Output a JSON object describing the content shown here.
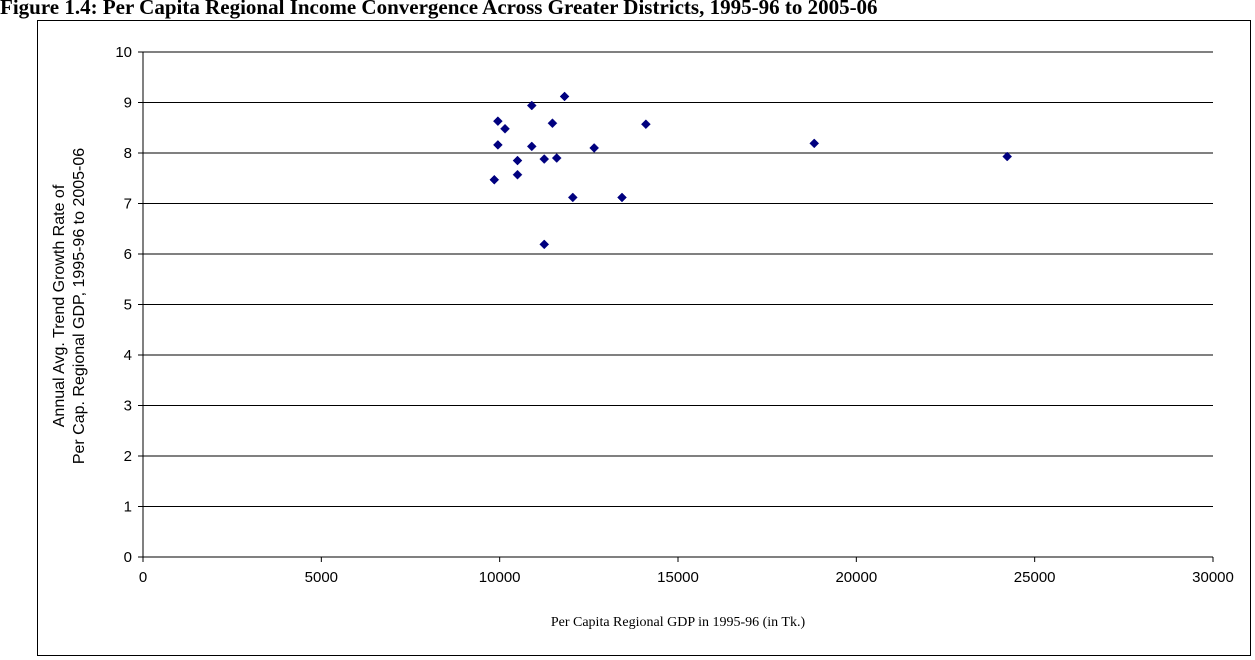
{
  "chart_data": {
    "type": "scatter",
    "title": "Figure 1.4: Per Capita Regional Income Convergence Across Greater Districts, 1995-96 to 2005-06",
    "xlabel": "Per Capita Regional GDP in 1995-96 (in Tk.)",
    "ylabel_lines": [
      "Annual Avg. Trend Growth Rate of",
      "Per Cap. Regional GDP, 1995-96 to 2005-06"
    ],
    "xlim": [
      0,
      30000
    ],
    "ylim": [
      0,
      10
    ],
    "xticks": [
      0,
      5000,
      10000,
      15000,
      20000,
      25000,
      30000
    ],
    "yticks": [
      0,
      1,
      2,
      3,
      4,
      5,
      6,
      7,
      8,
      9,
      10
    ],
    "grid": "horizontal",
    "marker_color": "#00007f",
    "points": [
      {
        "x": 9850,
        "y": 7.47
      },
      {
        "x": 9950,
        "y": 8.63
      },
      {
        "x": 9950,
        "y": 8.16
      },
      {
        "x": 10150,
        "y": 8.48
      },
      {
        "x": 10500,
        "y": 7.85
      },
      {
        "x": 10500,
        "y": 7.57
      },
      {
        "x": 10900,
        "y": 8.94
      },
      {
        "x": 10900,
        "y": 8.13
      },
      {
        "x": 11250,
        "y": 7.88
      },
      {
        "x": 11250,
        "y": 6.19
      },
      {
        "x": 11480,
        "y": 8.59
      },
      {
        "x": 11600,
        "y": 7.9
      },
      {
        "x": 11820,
        "y": 9.12
      },
      {
        "x": 12050,
        "y": 7.12
      },
      {
        "x": 12650,
        "y": 8.1
      },
      {
        "x": 13430,
        "y": 7.12
      },
      {
        "x": 14100,
        "y": 8.57
      },
      {
        "x": 18820,
        "y": 8.19
      },
      {
        "x": 24230,
        "y": 7.93
      }
    ]
  }
}
